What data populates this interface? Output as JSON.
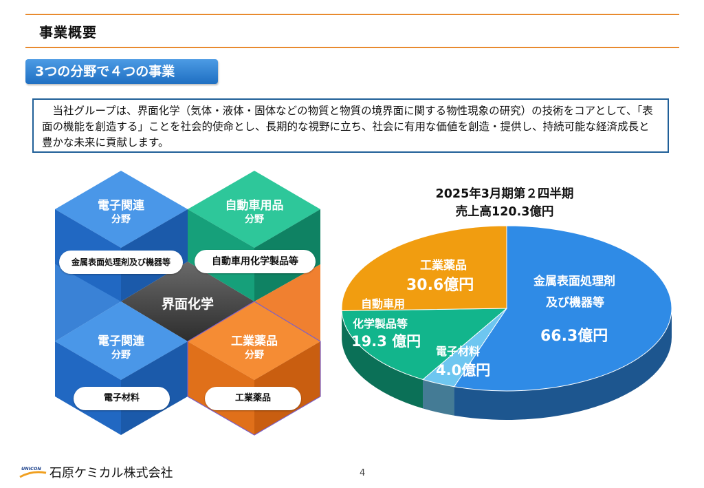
{
  "header": {
    "title": "事業概要"
  },
  "section": {
    "subtitle": "3つの分野で４つの事業"
  },
  "intro": {
    "text": "　当社グループは、界面化学（気体・液体・固体などの物質と物質の境界面に関する物性現象の研究）の技術をコアとして、「表面の機能を創造する」ことを社会的使命とし、長期的な視野に立ち、社会に有用な価値を創造・提供し、持続可能な経済成長と豊かな未来に貢献します。"
  },
  "hexagons": {
    "center": "界面化学",
    "top_left": {
      "title": "電子関連",
      "sub": "分野",
      "pill": "金属表面処理剤及び機器等",
      "color": "#2f7fd6"
    },
    "top_right": {
      "title": "自動車用品",
      "sub": "分野",
      "pill": "自動車用化学製品等",
      "color": "#1aab82"
    },
    "bottom_left": {
      "title": "電子関連",
      "sub": "分野",
      "pill": "電子材料",
      "color": "#2f7fd6"
    },
    "bottom_right": {
      "title": "工業薬品",
      "sub": "分野",
      "pill": "工業薬品",
      "color": "#f07b23"
    }
  },
  "chart_data": {
    "type": "pie",
    "title_line1": "2025年3月期第２四半期",
    "title_line2": "売上高120.3億円",
    "slices": [
      {
        "name_line1": "金属表面処理剤",
        "name_line2": "及び機器等",
        "value": 66.3,
        "value_label": "66.3億円",
        "color": "#2f8be6"
      },
      {
        "name_line1": "電子材料",
        "name_line2": "",
        "value": 4.0,
        "value_label": "4.0億円",
        "color": "#6ec6f0"
      },
      {
        "name_line1": "自動車用",
        "name_line2": "化学製品等",
        "value": 19.3,
        "value_label": "19.3 億円",
        "color": "#12b58c"
      },
      {
        "name_line1": "工業薬品",
        "name_line2": "",
        "value": 30.6,
        "value_label": "30.6億円",
        "color": "#f19d10"
      }
    ]
  },
  "footer": {
    "company": "石原ケミカル株式会社",
    "logo_text": "UNICON",
    "page": "4"
  }
}
